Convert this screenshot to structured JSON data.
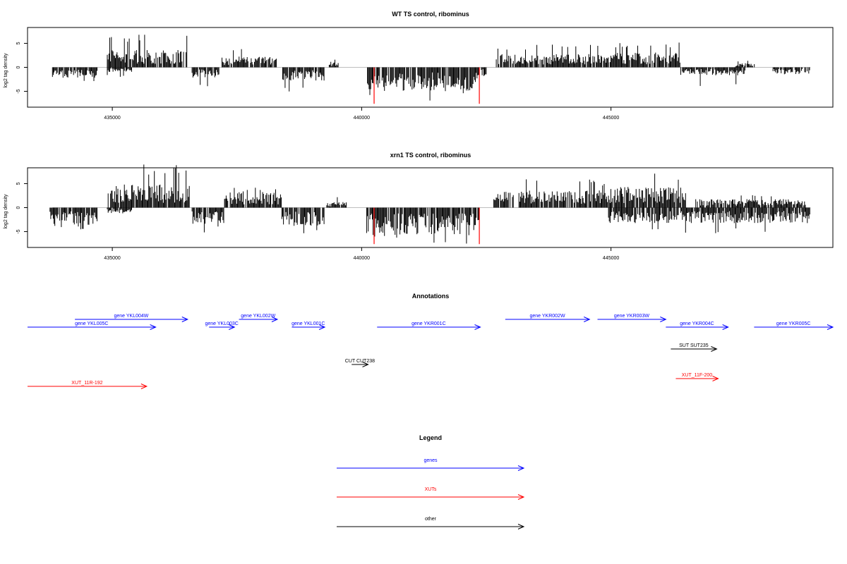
{
  "figure": {
    "annotations_title": "Annotations",
    "legend_title": "Legend"
  },
  "colors": {
    "axis": "#000000",
    "bar": "#000000",
    "highlight": "#ff0000",
    "baseline": "#bebebe",
    "gene": "#0000ff",
    "xut": "#ff0000",
    "other": "#000000"
  },
  "chart_data": [
    {
      "type": "bar",
      "title": "WT TS control, ribominus",
      "ylabel": "log2 tag density",
      "xlabel": "",
      "xlim": [
        433300,
        449450
      ],
      "ylim": [
        -8.3,
        8.3
      ],
      "x_ticks": [
        435000,
        440000,
        445000
      ],
      "y_ticks": [
        -5,
        0,
        5
      ],
      "grid": false,
      "baseline": 0,
      "highlight_marks": [
        {
          "x": 440250,
          "value": -7.6
        },
        {
          "x": 442360,
          "value": -7.6
        }
      ],
      "segments": [
        {
          "x0": 433800,
          "x1": 434700,
          "sign": -1,
          "amp": 1.8,
          "max": 3.3
        },
        {
          "x0": 434900,
          "x1": 436500,
          "sign": 1,
          "amp": 3.0,
          "max": 7.0
        },
        {
          "x0": 434900,
          "x1": 435400,
          "sign": -1,
          "amp": 0.8,
          "max": 2.0
        },
        {
          "x0": 436600,
          "x1": 437150,
          "sign": -1,
          "amp": 1.8,
          "max": 4.0
        },
        {
          "x0": 437200,
          "x1": 438300,
          "sign": 1,
          "amp": 1.9,
          "max": 4.0
        },
        {
          "x0": 438400,
          "x1": 439250,
          "sign": -1,
          "amp": 2.3,
          "max": 5.3
        },
        {
          "x0": 439350,
          "x1": 439550,
          "sign": 1,
          "amp": 1.0,
          "max": 2.0
        },
        {
          "x0": 440100,
          "x1": 442350,
          "sign": -1,
          "amp": 4.2,
          "max": 7.0
        },
        {
          "x0": 442400,
          "x1": 442500,
          "sign": -1,
          "amp": 1.5,
          "max": 2.0
        },
        {
          "x0": 442700,
          "x1": 444950,
          "sign": 1,
          "amp": 2.3,
          "max": 4.8
        },
        {
          "x0": 444950,
          "x1": 446400,
          "sign": 1,
          "amp": 2.6,
          "max": 5.3
        },
        {
          "x0": 446400,
          "x1": 447700,
          "sign": -1,
          "amp": 1.4,
          "max": 4.0
        },
        {
          "x0": 447500,
          "x1": 447900,
          "sign": 1,
          "amp": 0.8,
          "max": 1.5
        },
        {
          "x0": 448250,
          "x1": 449000,
          "sign": -1,
          "amp": 1.2,
          "max": 3.2
        }
      ]
    },
    {
      "type": "bar",
      "title": "xrn1 TS control, ribominus",
      "ylabel": "log2 tag density",
      "xlabel": "",
      "xlim": [
        433300,
        449450
      ],
      "ylim": [
        -8.3,
        8.3
      ],
      "x_ticks": [
        435000,
        440000,
        445000
      ],
      "y_ticks": [
        -5,
        0,
        5
      ],
      "grid": false,
      "baseline": 0,
      "highlight_marks": [
        {
          "x": 440250,
          "value": -7.6
        },
        {
          "x": 442360,
          "value": -7.6
        }
      ],
      "segments": [
        {
          "x0": 433750,
          "x1": 434700,
          "sign": -1,
          "amp": 3.0,
          "max": 4.8
        },
        {
          "x0": 434900,
          "x1": 436550,
          "sign": 1,
          "amp": 4.0,
          "max": 9.0
        },
        {
          "x0": 434900,
          "x1": 435400,
          "sign": -1,
          "amp": 1.0,
          "max": 2.5
        },
        {
          "x0": 436600,
          "x1": 437250,
          "sign": -1,
          "amp": 3.0,
          "max": 5.2
        },
        {
          "x0": 437250,
          "x1": 438400,
          "sign": 1,
          "amp": 2.7,
          "max": 4.5
        },
        {
          "x0": 438400,
          "x1": 439250,
          "sign": -1,
          "amp": 3.2,
          "max": 6.0
        },
        {
          "x0": 439300,
          "x1": 439700,
          "sign": 1,
          "amp": 1.0,
          "max": 2.2
        },
        {
          "x0": 440100,
          "x1": 442350,
          "sign": -1,
          "amp": 4.8,
          "max": 7.6
        },
        {
          "x0": 442650,
          "x1": 444950,
          "sign": 1,
          "amp": 3.0,
          "max": 6.0
        },
        {
          "x0": 444950,
          "x1": 446500,
          "sign": 1,
          "amp": 3.6,
          "max": 7.5
        },
        {
          "x0": 444950,
          "x1": 449000,
          "sign": -1,
          "amp": 2.7,
          "max": 5.6
        },
        {
          "x0": 446700,
          "x1": 448900,
          "sign": 1,
          "amp": 1.5,
          "max": 3.0
        }
      ]
    }
  ],
  "annotations": {
    "features": [
      {
        "label": "gene YKL005C",
        "type": "gene",
        "x_from": 433300,
        "x_to": 435870,
        "row": 1
      },
      {
        "label": "gene YKL004W",
        "type": "gene",
        "x_from": 434250,
        "x_to": 436510,
        "row": 0
      },
      {
        "label": "gene YKL003C",
        "type": "gene",
        "x_from": 436940,
        "x_to": 437450,
        "row": 1
      },
      {
        "label": "gene YKL002W",
        "type": "gene",
        "x_from": 437540,
        "x_to": 438310,
        "row": 0
      },
      {
        "label": "gene YKL001C",
        "type": "gene",
        "x_from": 438600,
        "x_to": 439260,
        "row": 1
      },
      {
        "label": "gene YKR001C",
        "type": "gene",
        "x_from": 440310,
        "x_to": 442380,
        "row": 1
      },
      {
        "label": "gene YKR002W",
        "type": "gene",
        "x_from": 442880,
        "x_to": 444570,
        "row": 0
      },
      {
        "label": "gene YKR003W",
        "type": "gene",
        "x_from": 444730,
        "x_to": 446100,
        "row": 0
      },
      {
        "label": "gene YKR004C",
        "type": "gene",
        "x_from": 446100,
        "x_to": 447350,
        "row": 1
      },
      {
        "label": "gene YKR005C",
        "type": "gene",
        "x_from": 447870,
        "x_to": 449450,
        "row": 1
      },
      {
        "label": "SUT SUT235",
        "type": "other",
        "x_from": 446200,
        "x_to": 447120,
        "row": 2
      },
      {
        "label": "CUT CUT238",
        "type": "other",
        "x_from": 439800,
        "x_to": 440130,
        "row": 3
      },
      {
        "label": "XUT_11F-200",
        "type": "xut",
        "x_from": 446300,
        "x_to": 447150,
        "row": 4
      },
      {
        "label": "XUT_11R-192",
        "type": "xut",
        "x_from": 433250,
        "x_to": 435690,
        "row": 5
      }
    ]
  },
  "legend": {
    "items": [
      {
        "label": "genes",
        "type": "gene"
      },
      {
        "label": "XUTs",
        "type": "xut"
      },
      {
        "label": "other",
        "type": "other"
      }
    ]
  }
}
